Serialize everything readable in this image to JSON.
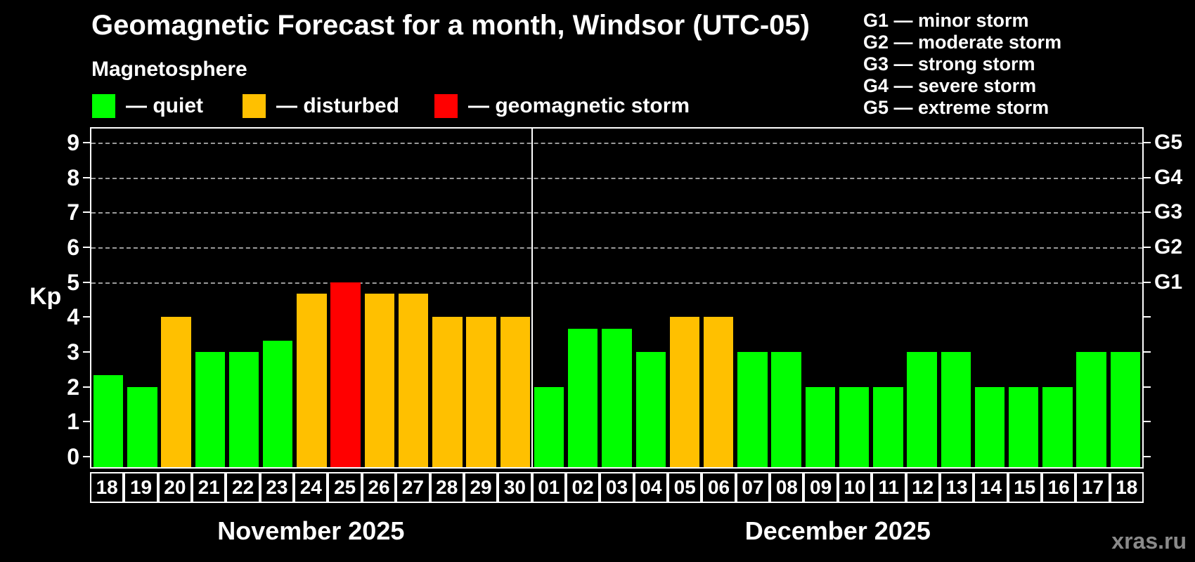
{
  "title": "Geomagnetic Forecast for a month, Windsor (UTC-05)",
  "subtitle": "Magnetosphere",
  "legend": {
    "items": [
      {
        "key": "quiet",
        "label": "— quiet",
        "color": "#00ff00"
      },
      {
        "key": "disturbed",
        "label": "— disturbed",
        "color": "#ffc000"
      },
      {
        "key": "storm",
        "label": "— geomagnetic storm",
        "color": "#ff0000"
      }
    ]
  },
  "storm_scale_legend": [
    "G1 — minor storm",
    "G2 — moderate storm",
    "G3 — strong storm",
    "G4 — severe storm",
    "G5 — extreme storm"
  ],
  "watermark": "xras.ru",
  "chart_data": {
    "type": "bar",
    "ylabel": "Kp",
    "ylim": [
      -0.3,
      9.4
    ],
    "yticks": [
      0,
      1,
      2,
      3,
      4,
      5,
      6,
      7,
      8,
      9
    ],
    "gridlines": [
      5,
      6,
      7,
      8,
      9
    ],
    "right_axis_labels": [
      {
        "value": 5,
        "label": "G1"
      },
      {
        "value": 6,
        "label": "G2"
      },
      {
        "value": 7,
        "label": "G3"
      },
      {
        "value": 8,
        "label": "G4"
      },
      {
        "value": 9,
        "label": "G5"
      }
    ],
    "status_colors": {
      "quiet": "#00ff00",
      "disturbed": "#ffc000",
      "storm": "#ff0000"
    },
    "months": [
      {
        "label": "November 2025",
        "days": [
          "18",
          "19",
          "20",
          "21",
          "22",
          "23",
          "24",
          "25",
          "26",
          "27",
          "28",
          "29",
          "30"
        ],
        "values": [
          2.33,
          2,
          4,
          3,
          3,
          3.33,
          4.67,
          5,
          4.67,
          4.67,
          4,
          4,
          4
        ],
        "statuses": [
          "quiet",
          "quiet",
          "disturbed",
          "quiet",
          "quiet",
          "quiet",
          "disturbed",
          "storm",
          "disturbed",
          "disturbed",
          "disturbed",
          "disturbed",
          "disturbed"
        ]
      },
      {
        "label": "December 2025",
        "days": [
          "01",
          "02",
          "03",
          "04",
          "05",
          "06",
          "07",
          "08",
          "09",
          "10",
          "11",
          "12",
          "13",
          "14",
          "15",
          "16",
          "17",
          "18"
        ],
        "values": [
          2,
          3.67,
          3.67,
          3,
          4,
          4,
          3,
          3,
          2,
          2,
          2,
          3,
          3,
          2,
          2,
          2,
          3,
          3
        ],
        "statuses": [
          "quiet",
          "quiet",
          "quiet",
          "quiet",
          "disturbed",
          "disturbed",
          "quiet",
          "quiet",
          "quiet",
          "quiet",
          "quiet",
          "quiet",
          "quiet",
          "quiet",
          "quiet",
          "quiet",
          "quiet",
          "quiet"
        ]
      }
    ]
  }
}
